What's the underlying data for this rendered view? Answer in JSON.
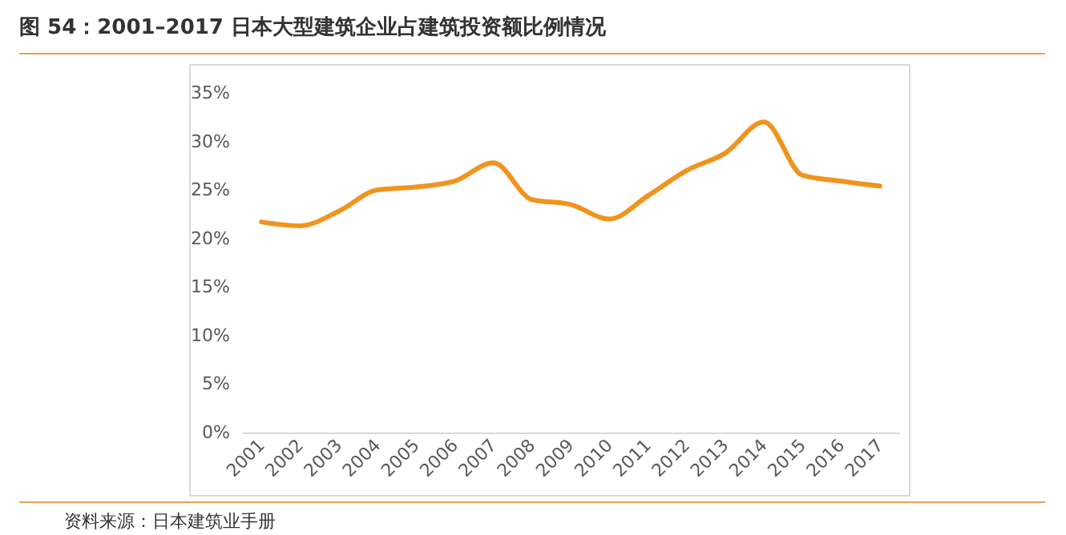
{
  "chart_data": {
    "type": "line",
    "title": "图 54：2001–2017 日本大型建筑企业占建筑投资额比例情况",
    "categories": [
      "2001",
      "2002",
      "2003",
      "2004",
      "2005",
      "2006",
      "2007",
      "2008",
      "2009",
      "2010",
      "2011",
      "2012",
      "2013",
      "2014",
      "2015",
      "2016",
      "2017"
    ],
    "series": [
      {
        "color": "#f0941e",
        "values": [
          21.7,
          21.3,
          22.8,
          25.0,
          25.3,
          25.9,
          27.8,
          24.0,
          23.5,
          22.0,
          24.4,
          27.0,
          28.8,
          32.0,
          26.5,
          25.9,
          25.4
        ]
      }
    ],
    "ylim": [
      0,
      35
    ],
    "yticks": [
      {
        "value": 0,
        "label": "0%"
      },
      {
        "value": 5,
        "label": "5%"
      },
      {
        "value": 10,
        "label": "10%"
      },
      {
        "value": 15,
        "label": "15%"
      },
      {
        "value": 20,
        "label": "20%"
      },
      {
        "value": 25,
        "label": "25%"
      },
      {
        "value": 30,
        "label": "30%"
      },
      {
        "value": 35,
        "label": "35%"
      }
    ],
    "grid": false,
    "marker": "none",
    "line_style": "solid",
    "annotations": [
      "资料来源：日本建筑业手册"
    ]
  }
}
